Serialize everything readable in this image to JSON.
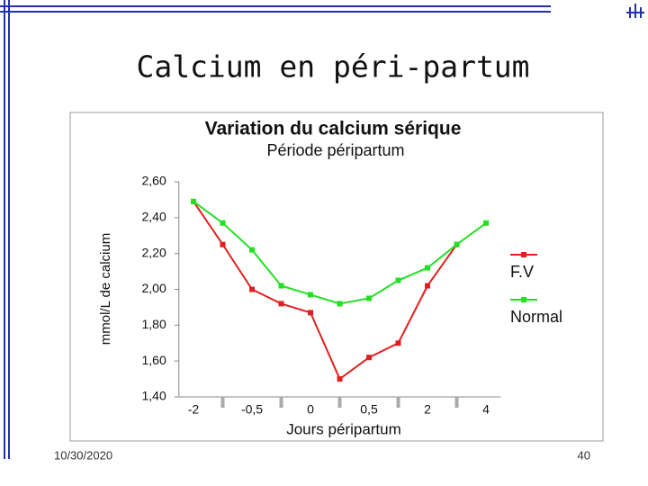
{
  "slide_title": "Calcium en péri-partum",
  "date": "10/30/2020",
  "page": "40",
  "chart_data": {
    "type": "line",
    "title": "Variation du calcium sérique",
    "subtitle": "Période péripartum",
    "x_label": "Jours péripartum",
    "y_label": "mmol/L de calcium",
    "categories": [
      "-2",
      null,
      "-0,5",
      null,
      "0",
      null,
      "0,5",
      null,
      "2",
      null,
      "4"
    ],
    "series": [
      {
        "name": "F.V",
        "color": "#e02020",
        "values": [
          2.49,
          2.25,
          2.0,
          1.92,
          1.87,
          1.5,
          1.62,
          1.7,
          2.02,
          2.25,
          null
        ]
      },
      {
        "name": "Normal",
        "color": "#22e022",
        "values": [
          2.49,
          2.37,
          2.22,
          2.02,
          1.97,
          1.92,
          1.95,
          2.05,
          2.12,
          2.25,
          2.37
        ]
      }
    ],
    "ylim": [
      1.4,
      2.6
    ],
    "yticks": [
      {
        "value": 1.4,
        "label": "1,40"
      },
      {
        "value": 1.6,
        "label": "1,60"
      },
      {
        "value": 1.8,
        "label": "1,80"
      },
      {
        "value": 2.0,
        "label": "2,00"
      },
      {
        "value": 2.2,
        "label": "2,20"
      },
      {
        "value": 2.4,
        "label": "2,40"
      },
      {
        "value": 2.6,
        "label": "2,60"
      }
    ],
    "grid": false,
    "legend": "right"
  }
}
